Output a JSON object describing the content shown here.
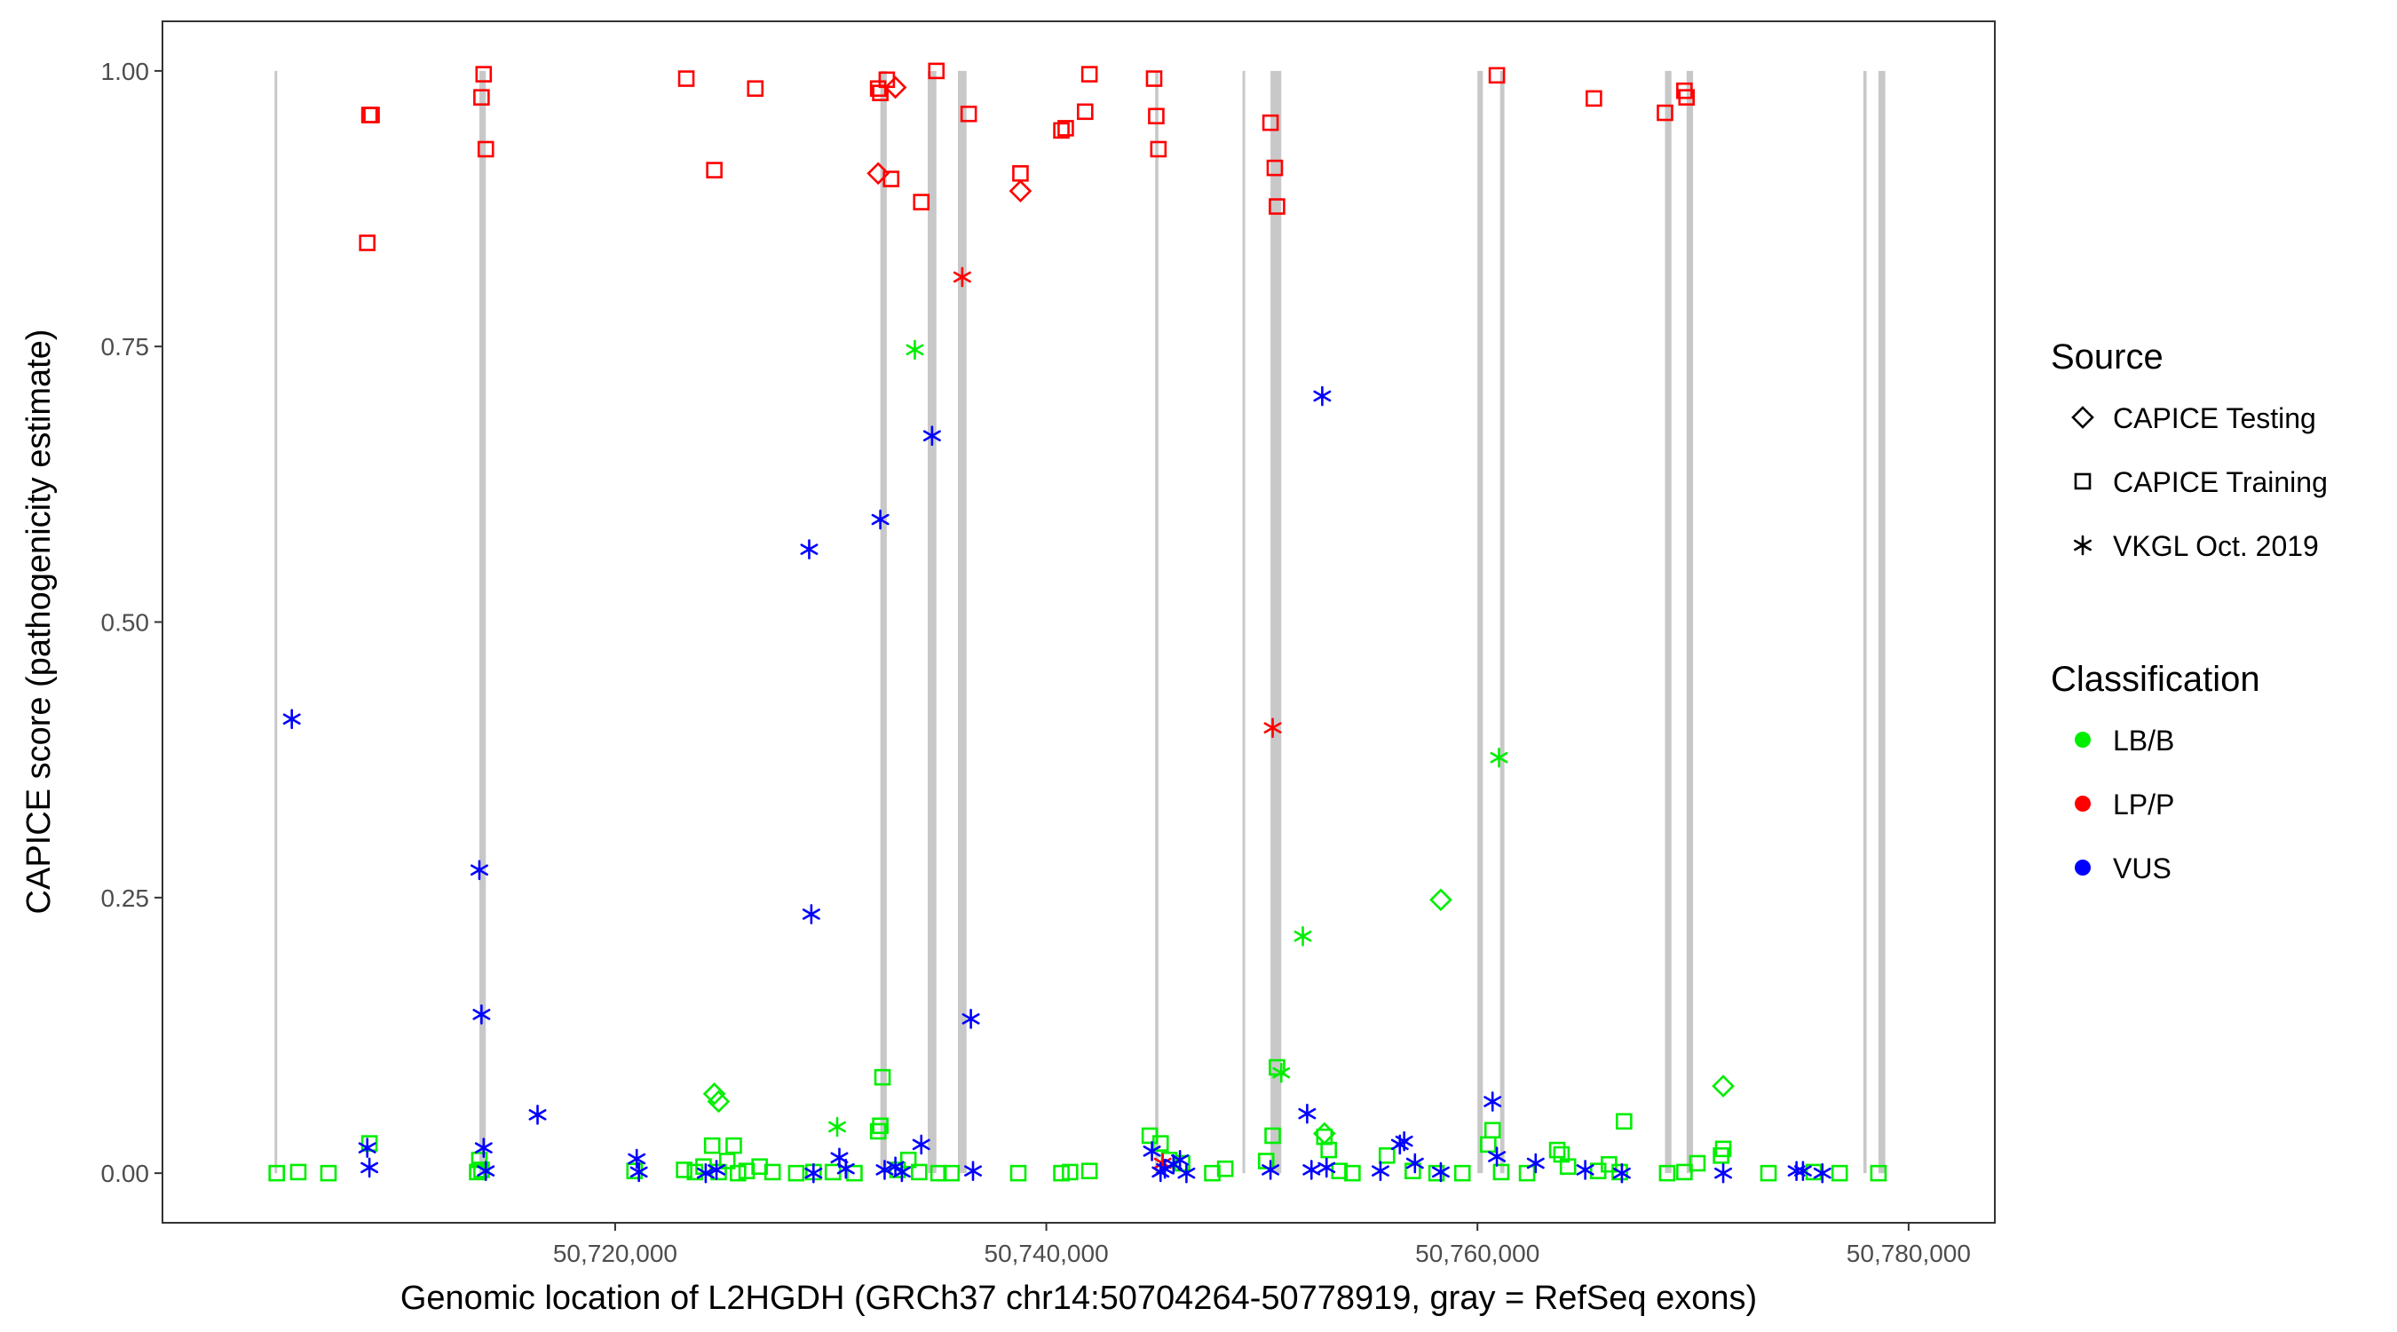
{
  "chart_data": {
    "type": "scatter",
    "xlabel": "Genomic location of L2HGDH (GRCh37 chr14:50704264-50778919, gray = RefSeq exons)",
    "ylabel": "CAPICE score (pathogenicity estimate)",
    "xlim": [
      50699000,
      50784000
    ],
    "ylim": [
      -0.045,
      1.045
    ],
    "x_ticks": [
      50720000,
      50740000,
      50760000,
      50780000
    ],
    "x_tick_labels": [
      "50,720,000",
      "50,740,000",
      "50,760,000",
      "50,780,000"
    ],
    "y_ticks": [
      0,
      0.25,
      0.5,
      0.75,
      1.0
    ],
    "y_tick_labels": [
      "0.00",
      "0.25",
      "0.50",
      "0.75",
      "1.00"
    ],
    "grid": false,
    "exons": [
      [
        50704200,
        50704300
      ],
      [
        50713700,
        50714000
      ],
      [
        50732300,
        50732600
      ],
      [
        50734500,
        50734900
      ],
      [
        50735900,
        50736300
      ],
      [
        50745050,
        50745200
      ],
      [
        50749100,
        50749200
      ],
      [
        50750400,
        50750900
      ],
      [
        50760000,
        50760250
      ],
      [
        50761050,
        50761250
      ],
      [
        50768700,
        50769000
      ],
      [
        50769700,
        50770000
      ],
      [
        50777900,
        50778050
      ],
      [
        50778600,
        50778919
      ]
    ],
    "legend": {
      "source_title": "Source",
      "source_entries": [
        {
          "label": "CAPICE Testing",
          "shape": "diamond"
        },
        {
          "label": "CAPICE Training",
          "shape": "square"
        },
        {
          "label": "VKGL Oct. 2019",
          "shape": "asterisk"
        }
      ],
      "class_title": "Classification",
      "class_entries": [
        {
          "label": "LB/B",
          "color": "#00ee00"
        },
        {
          "label": "LP/P",
          "color": "#ff0000"
        },
        {
          "label": "VUS",
          "color": "#0000ff"
        }
      ]
    },
    "series": [
      {
        "name": "LB/B",
        "source": "CAPICE Training",
        "color": "#00ee00",
        "points": [
          [
            50704300,
            0.0
          ],
          [
            50705300,
            0.001
          ],
          [
            50706700,
            0.0
          ],
          [
            50708600,
            0.027
          ],
          [
            50713600,
            0.001
          ],
          [
            50713700,
            0.012
          ],
          [
            50713800,
            0.003
          ],
          [
            50720900,
            0.002
          ],
          [
            50723200,
            0.003
          ],
          [
            50723700,
            0.001
          ],
          [
            50724100,
            0.006
          ],
          [
            50724500,
            0.025
          ],
          [
            50724800,
            0.001
          ],
          [
            50725200,
            0.011
          ],
          [
            50725500,
            0.025
          ],
          [
            50725700,
            0.0
          ],
          [
            50726100,
            0.002
          ],
          [
            50726700,
            0.006
          ],
          [
            50727300,
            0.001
          ],
          [
            50728400,
            0.0
          ],
          [
            50729200,
            0.001
          ],
          [
            50730100,
            0.001
          ],
          [
            50731100,
            0.0
          ],
          [
            50732200,
            0.038
          ],
          [
            50732300,
            0.043
          ],
          [
            50732400,
            0.087
          ],
          [
            50733100,
            0.003
          ],
          [
            50733600,
            0.012
          ],
          [
            50734100,
            0.001
          ],
          [
            50735000,
            0.0
          ],
          [
            50735600,
            0.0
          ],
          [
            50738700,
            0.0
          ],
          [
            50740700,
            0.0
          ],
          [
            50741100,
            0.001
          ],
          [
            50742000,
            0.002
          ],
          [
            50744800,
            0.034
          ],
          [
            50745300,
            0.027
          ],
          [
            50745700,
            0.012
          ],
          [
            50746300,
            0.009
          ],
          [
            50747700,
            0.0
          ],
          [
            50748300,
            0.004
          ],
          [
            50750200,
            0.011
          ],
          [
            50750500,
            0.034
          ],
          [
            50750700,
            0.096
          ],
          [
            50752900,
            0.033
          ],
          [
            50753100,
            0.021
          ],
          [
            50753600,
            0.002
          ],
          [
            50754200,
            0.0
          ],
          [
            50755800,
            0.016
          ],
          [
            50757000,
            0.002
          ],
          [
            50758100,
            0.0
          ],
          [
            50759300,
            0.0
          ],
          [
            50760500,
            0.026
          ],
          [
            50760700,
            0.039
          ],
          [
            50761100,
            0.001
          ],
          [
            50762300,
            0.0
          ],
          [
            50763700,
            0.021
          ],
          [
            50763900,
            0.017
          ],
          [
            50764200,
            0.006
          ],
          [
            50765600,
            0.002
          ],
          [
            50766100,
            0.008
          ],
          [
            50766600,
            0.001
          ],
          [
            50766800,
            0.047
          ],
          [
            50768800,
            0.0
          ],
          [
            50769600,
            0.001
          ],
          [
            50770200,
            0.009
          ],
          [
            50771300,
            0.016
          ],
          [
            50771400,
            0.022
          ],
          [
            50773500,
            0.0
          ],
          [
            50775600,
            0.001
          ],
          [
            50776800,
            0.0
          ],
          [
            50778600,
            0.0
          ]
        ]
      },
      {
        "name": "LP/P",
        "source": "CAPICE Training",
        "color": "#ff0000",
        "points": [
          [
            50708600,
            0.96
          ],
          [
            50708700,
            0.96
          ],
          [
            50708500,
            0.844
          ],
          [
            50713900,
            0.997
          ],
          [
            50713800,
            0.976
          ],
          [
            50714000,
            0.929
          ],
          [
            50723300,
            0.993
          ],
          [
            50724600,
            0.91
          ],
          [
            50726500,
            0.984
          ],
          [
            50732200,
            0.984
          ],
          [
            50732300,
            0.98
          ],
          [
            50732600,
            0.992
          ],
          [
            50732800,
            0.902
          ],
          [
            50734200,
            0.881
          ],
          [
            50734900,
            1.0
          ],
          [
            50736400,
            0.961
          ],
          [
            50738800,
            0.907
          ],
          [
            50740700,
            0.946
          ],
          [
            50740900,
            0.948
          ],
          [
            50741800,
            0.963
          ],
          [
            50742000,
            0.997
          ],
          [
            50745000,
            0.993
          ],
          [
            50745100,
            0.959
          ],
          [
            50745200,
            0.929
          ],
          [
            50750400,
            0.953
          ],
          [
            50750600,
            0.912
          ],
          [
            50750700,
            0.877
          ],
          [
            50760900,
            0.996
          ],
          [
            50765400,
            0.975
          ],
          [
            50768700,
            0.962
          ],
          [
            50769600,
            0.982
          ],
          [
            50769700,
            0.976
          ]
        ]
      },
      {
        "name": "LB/B",
        "source": "CAPICE Testing",
        "color": "#00ee00",
        "points": [
          [
            50724600,
            0.072
          ],
          [
            50724800,
            0.065
          ],
          [
            50752900,
            0.036
          ],
          [
            50758300,
            0.248
          ],
          [
            50771400,
            0.079
          ]
        ]
      },
      {
        "name": "LP/P",
        "source": "CAPICE Testing",
        "color": "#ff0000",
        "points": [
          [
            50732200,
            0.907
          ],
          [
            50733000,
            0.985
          ],
          [
            50738800,
            0.891
          ]
        ]
      },
      {
        "name": "LB/B",
        "source": "VKGL Oct. 2019",
        "color": "#00ee00",
        "points": [
          [
            50730300,
            0.042
          ],
          [
            50733900,
            0.747
          ],
          [
            50750900,
            0.091
          ],
          [
            50751900,
            0.215
          ],
          [
            50761000,
            0.377
          ]
        ]
      },
      {
        "name": "LP/P",
        "source": "VKGL Oct. 2019",
        "color": "#ff0000",
        "points": [
          [
            50736100,
            0.813
          ],
          [
            50745400,
            0.009
          ],
          [
            50750500,
            0.404
          ]
        ]
      },
      {
        "name": "VUS",
        "source": "VKGL Oct. 2019",
        "color": "#0000ff",
        "points": [
          [
            50705000,
            0.412
          ],
          [
            50708500,
            0.023
          ],
          [
            50708600,
            0.005
          ],
          [
            50713700,
            0.275
          ],
          [
            50713800,
            0.144
          ],
          [
            50713900,
            0.023
          ],
          [
            50714000,
            0.002
          ],
          [
            50716400,
            0.053
          ],
          [
            50721000,
            0.013
          ],
          [
            50721100,
            0.001
          ],
          [
            50724200,
            0.0
          ],
          [
            50724700,
            0.003
          ],
          [
            50729000,
            0.566
          ],
          [
            50729100,
            0.235
          ],
          [
            50729200,
            0.0
          ],
          [
            50730400,
            0.014
          ],
          [
            50730700,
            0.004
          ],
          [
            50732300,
            0.593
          ],
          [
            50732500,
            0.003
          ],
          [
            50733000,
            0.006
          ],
          [
            50733300,
            0.001
          ],
          [
            50734200,
            0.026
          ],
          [
            50734700,
            0.669
          ],
          [
            50736500,
            0.14
          ],
          [
            50736600,
            0.002
          ],
          [
            50744900,
            0.02
          ],
          [
            50745300,
            0.001
          ],
          [
            50745500,
            0.004
          ],
          [
            50745900,
            0.008
          ],
          [
            50746200,
            0.012
          ],
          [
            50746500,
            0.0
          ],
          [
            50750400,
            0.003
          ],
          [
            50752100,
            0.054
          ],
          [
            50752300,
            0.003
          ],
          [
            50752800,
            0.705
          ],
          [
            50753000,
            0.005
          ],
          [
            50755500,
            0.002
          ],
          [
            50756400,
            0.026
          ],
          [
            50756600,
            0.029
          ],
          [
            50757100,
            0.009
          ],
          [
            50758300,
            0.001
          ],
          [
            50760700,
            0.065
          ],
          [
            50760900,
            0.015
          ],
          [
            50762700,
            0.009
          ],
          [
            50765000,
            0.003
          ],
          [
            50766700,
            0.0
          ],
          [
            50771400,
            0.0
          ],
          [
            50774800,
            0.002
          ],
          [
            50775100,
            0.002
          ],
          [
            50776000,
            0.0
          ]
        ]
      }
    ]
  }
}
